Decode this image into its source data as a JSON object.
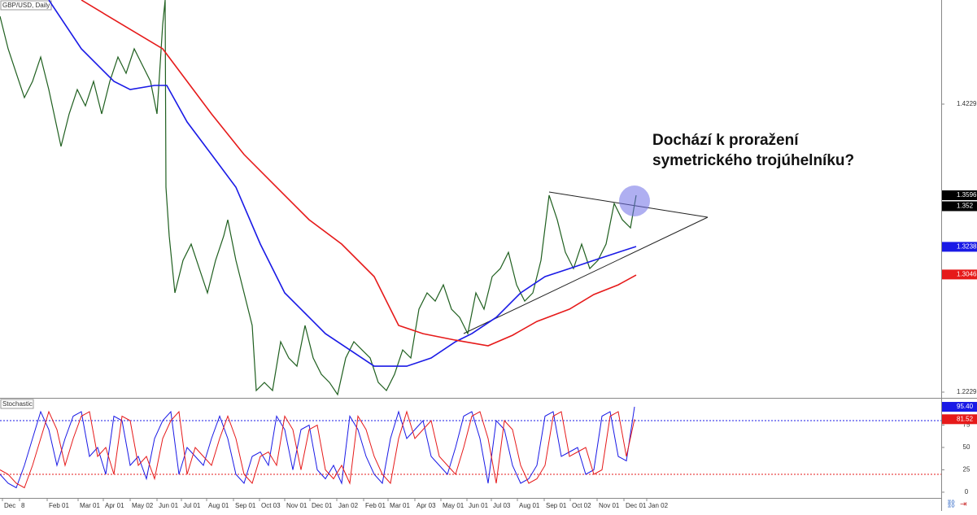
{
  "chart_data": [
    {
      "type": "line",
      "title": "GBP/USD, Daily",
      "annotation": [
        "Dochází k proražení",
        "symetrického trojúhelníku?"
      ],
      "xlim": [
        0,
        1157
      ],
      "ylim": [
        1.2195,
        1.4952
      ],
      "yticks": [
        1.2229,
        1.4229
      ],
      "xticks": [
        {
          "value": 3,
          "label": "Dec"
        },
        {
          "value": 24,
          "label": "8"
        },
        {
          "value": 58,
          "label": "Feb 01"
        },
        {
          "value": 96,
          "label": "Mar 01"
        },
        {
          "value": 127,
          "label": "Apr 01"
        },
        {
          "value": 160,
          "label": "May 02"
        },
        {
          "value": 193,
          "label": "Jun 01"
        },
        {
          "value": 223,
          "label": "Jul 01"
        },
        {
          "value": 254,
          "label": "Aug 01"
        },
        {
          "value": 287,
          "label": "Sep 01"
        },
        {
          "value": 319,
          "label": "Oct 03"
        },
        {
          "value": 350,
          "label": "Nov 01"
        },
        {
          "value": 381,
          "label": "Dec 01"
        },
        {
          "value": 414,
          "label": "Jan 02"
        },
        {
          "value": 447,
          "label": "Feb 01"
        },
        {
          "value": 477,
          "label": "Mar 01"
        },
        {
          "value": 510,
          "label": "Apr 03"
        },
        {
          "value": 542,
          "label": "May 01"
        },
        {
          "value": 574,
          "label": "Jun 01"
        },
        {
          "value": 604,
          "label": "Jul 03"
        },
        {
          "value": 636,
          "label": "Aug 01"
        },
        {
          "value": 669,
          "label": "Sep 01"
        },
        {
          "value": 701,
          "label": "Oct 02"
        },
        {
          "value": 734,
          "label": "Nov 01"
        },
        {
          "value": 767,
          "label": "Dec 01"
        },
        {
          "value": 795,
          "label": "Jan 02"
        }
      ],
      "series": [
        {
          "color": "#1f5f1f",
          "x": [
            0,
            10,
            20,
            30,
            40,
            50,
            60,
            75,
            85,
            95,
            105,
            115,
            125,
            135,
            145,
            155,
            165,
            175,
            185,
            193,
            200,
            203,
            204,
            208,
            215,
            225,
            235,
            245,
            255,
            265,
            275,
            280,
            290,
            300,
            310,
            315,
            325,
            335,
            345,
            355,
            365,
            375,
            385,
            395,
            405,
            415,
            425,
            435,
            445,
            455,
            465,
            475,
            485,
            495,
            505,
            515,
            525,
            535,
            545,
            555,
            565,
            575,
            585,
            595,
            605,
            615,
            625,
            635,
            645,
            655,
            665,
            675,
            685,
            695,
            705,
            715,
            725,
            735,
            745,
            755,
            765,
            775,
            782
          ],
          "values": [
            1.4839,
            1.4613,
            1.4443,
            1.4274,
            1.4387,
            1.4556,
            1.433,
            1.3935,
            1.4161,
            1.433,
            1.4217,
            1.4387,
            1.4161,
            1.4387,
            1.4556,
            1.4443,
            1.4613,
            1.45,
            1.4387,
            1.4161,
            1.4782,
            1.4952,
            1.3652,
            1.3313,
            1.2918,
            1.3144,
            1.3257,
            1.3087,
            1.2918,
            1.3144,
            1.3313,
            1.3426,
            1.3144,
            1.2918,
            1.2692,
            1.224,
            1.2296,
            1.224,
            1.2579,
            1.2466,
            1.2409,
            1.2692,
            1.2466,
            1.2353,
            1.2296,
            1.2212,
            1.2466,
            1.2579,
            1.2522,
            1.2466,
            1.2296,
            1.224,
            1.2353,
            1.2522,
            1.2466,
            1.2805,
            1.2918,
            1.2861,
            1.2974,
            1.2805,
            1.2748,
            1.2635,
            1.2918,
            1.2805,
            1.3031,
            1.3087,
            1.32,
            1.2974,
            1.2861,
            1.2918,
            1.3144,
            1.3596,
            1.3426,
            1.32,
            1.3087,
            1.3257,
            1.3087,
            1.3144,
            1.3257,
            1.3539,
            1.3426,
            1.337,
            1.3596
          ]
        },
        {
          "color": "#1a1ae6",
          "x": [
            60,
            100,
            140,
            160,
            190,
            205,
            230,
            260,
            290,
            320,
            350,
            375,
            400,
            430,
            460,
            500,
            530,
            560,
            580,
            610,
            640,
            670,
            700,
            730,
            760,
            782
          ],
          "values": [
            1.4952,
            1.4613,
            1.4387,
            1.433,
            1.4359,
            1.4359,
            1.4105,
            1.3879,
            1.3652,
            1.3257,
            1.2918,
            1.2777,
            1.2635,
            1.2522,
            1.2409,
            1.2409,
            1.2466,
            1.2579,
            1.2635,
            1.2748,
            1.2918,
            1.3031,
            1.3087,
            1.3144,
            1.32,
            1.324
          ]
        },
        {
          "color": "#e61a1a",
          "x": [
            100,
            150,
            200,
            230,
            260,
            300,
            340,
            380,
            420,
            460,
            490,
            520,
            560,
            600,
            630,
            660,
            700,
            730,
            760,
            782
          ],
          "values": [
            1.4952,
            1.4782,
            1.4613,
            1.4387,
            1.4161,
            1.3879,
            1.3652,
            1.3426,
            1.3257,
            1.3031,
            1.2692,
            1.2635,
            1.259,
            1.2551,
            1.2624,
            1.272,
            1.2805,
            1.2907,
            1.2974,
            1.3042
          ]
        }
      ],
      "price_labels": [
        {
          "value": 1.3596,
          "color": "#000000"
        },
        {
          "value": 1.352,
          "color": "#000000"
        },
        {
          "value": 1.3238,
          "color": "#1a1ae6"
        },
        {
          "value": 1.3046,
          "color": "#e61a1a"
        }
      ]
    },
    {
      "type": "stochastic",
      "title": "Stochastic",
      "xlim": [
        0,
        1157
      ],
      "ylim": [
        -6.4,
        103.6
      ],
      "yticks": [
        0,
        25,
        50,
        75
      ],
      "levels": [
        {
          "value": 80,
          "color": "#1a1ae6"
        },
        {
          "value": 20,
          "color": "#e61a1a"
        }
      ],
      "x": [
        0,
        10,
        20,
        30,
        40,
        50,
        60,
        70,
        80,
        90,
        100,
        110,
        120,
        130,
        140,
        150,
        160,
        170,
        180,
        190,
        200,
        210,
        220,
        230,
        240,
        250,
        260,
        270,
        280,
        290,
        300,
        310,
        320,
        330,
        340,
        350,
        360,
        370,
        380,
        390,
        400,
        410,
        420,
        430,
        440,
        450,
        460,
        470,
        480,
        490,
        500,
        510,
        520,
        530,
        540,
        550,
        560,
        570,
        580,
        590,
        600,
        610,
        620,
        630,
        640,
        650,
        660,
        670,
        680,
        690,
        700,
        710,
        720,
        730,
        740,
        750,
        760,
        770,
        780
      ],
      "series": [
        {
          "color": "#1a1ae6",
          "values": [
            20,
            10,
            5,
            30,
            60,
            90,
            70,
            30,
            60,
            85,
            90,
            40,
            50,
            20,
            85,
            80,
            30,
            40,
            15,
            60,
            80,
            90,
            20,
            50,
            40,
            30,
            60,
            85,
            60,
            20,
            10,
            40,
            45,
            30,
            85,
            70,
            25,
            70,
            75,
            25,
            15,
            30,
            10,
            85,
            70,
            40,
            20,
            10,
            60,
            90,
            60,
            70,
            80,
            40,
            30,
            20,
            50,
            85,
            90,
            60,
            10,
            80,
            70,
            30,
            10,
            15,
            30,
            85,
            90,
            40,
            45,
            50,
            20,
            25,
            85,
            90,
            40,
            35,
            95.4
          ],
          "value_label": "95.40"
        },
        {
          "color": "#e61a1a",
          "values": [
            25,
            20,
            10,
            5,
            30,
            60,
            90,
            70,
            30,
            60,
            85,
            90,
            40,
            50,
            20,
            85,
            80,
            30,
            40,
            15,
            60,
            80,
            90,
            20,
            50,
            40,
            30,
            60,
            85,
            60,
            20,
            10,
            40,
            45,
            30,
            85,
            70,
            25,
            70,
            75,
            25,
            15,
            30,
            10,
            85,
            70,
            40,
            20,
            10,
            60,
            90,
            60,
            70,
            80,
            40,
            30,
            20,
            50,
            85,
            90,
            60,
            10,
            80,
            70,
            30,
            10,
            15,
            30,
            85,
            90,
            40,
            45,
            50,
            20,
            25,
            85,
            90,
            40,
            81.52
          ],
          "value_label": "81.52"
        }
      ]
    }
  ]
}
